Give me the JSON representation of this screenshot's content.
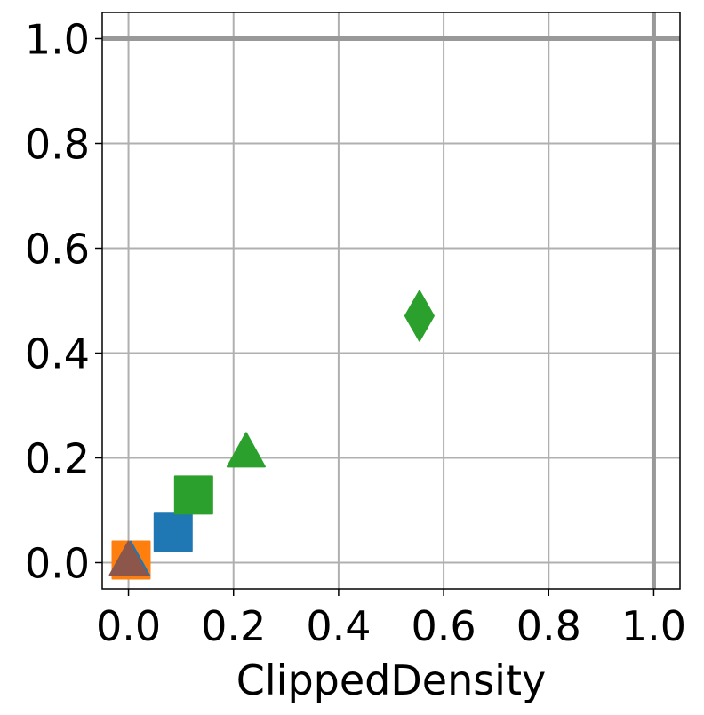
{
  "chart_data": {
    "type": "scatter",
    "x_label": "ClippedDensity",
    "series": [
      {
        "color": "#1f77b4",
        "marker": "square",
        "x": [
          0.085
        ],
        "values": [
          0.058
        ]
      },
      {
        "color": "#ff7f0e",
        "marker": "square",
        "x": [
          0.005
        ],
        "values": [
          0.005
        ]
      },
      {
        "color": "#2ca02c",
        "marker": "square",
        "x": [
          0.124
        ],
        "values": [
          0.129
        ]
      },
      {
        "color": "#2ca02c",
        "marker": "triangle",
        "x": [
          0.224
        ],
        "values": [
          0.207
        ]
      },
      {
        "color": "#1f77b4",
        "marker": "triangle",
        "x": [
          0.004
        ],
        "values": [
          0.0
        ]
      },
      {
        "color": "#8c564b",
        "marker": "triangle",
        "x": [
          0.0
        ],
        "values": [
          0.0
        ]
      },
      {
        "color": "#2ca02c",
        "marker": "diamond",
        "x": [
          0.554
        ],
        "values": [
          0.471
        ]
      }
    ],
    "xlim": [
      -0.05,
      1.05
    ],
    "ylim": [
      -0.05,
      1.05
    ],
    "xticks": [
      {
        "value": 0,
        "label": "0.0"
      },
      0.2,
      0.4,
      0.6,
      0.8,
      {
        "value": 1,
        "label": "1.0"
      }
    ],
    "yticks": [
      {
        "value": 0,
        "label": "0.0"
      },
      0.2,
      0.4,
      0.6,
      0.8,
      {
        "value": 1,
        "label": "1.0"
      }
    ],
    "grid": true,
    "reference_lines": {
      "x": [
        1
      ],
      "y": [
        1
      ]
    }
  }
}
